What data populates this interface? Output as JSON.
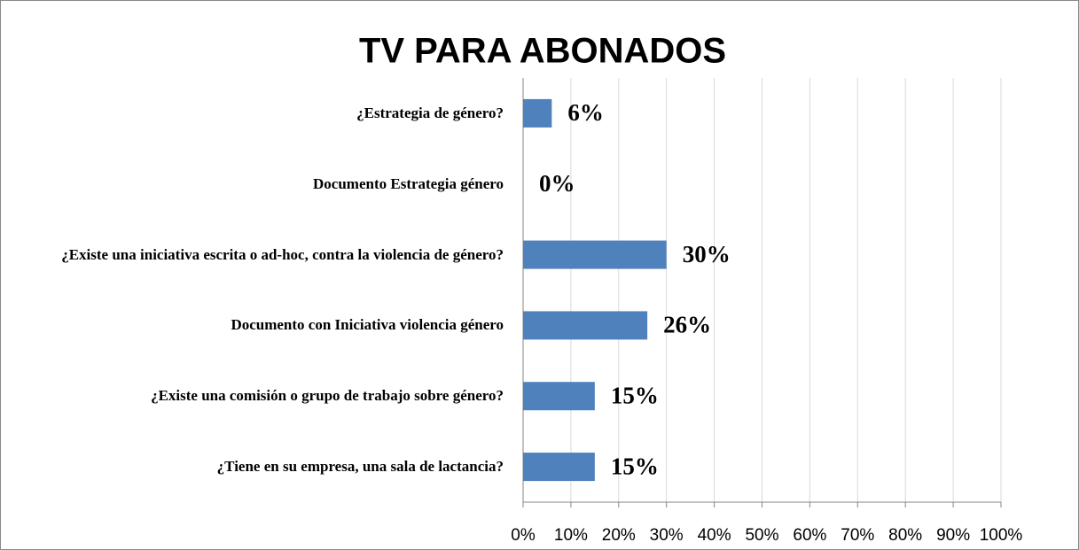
{
  "chart_data": {
    "type": "bar",
    "orientation": "horizontal",
    "title": "TV PARA ABONADOS",
    "categories": [
      "¿Estrategia de género?",
      "Documento Estrategia género",
      "¿Existe una iniciativa escrita o ad-hoc, contra la violencia de género?",
      "Documento con Iniciativa violencia género",
      "¿Existe una comisión o grupo de trabajo sobre género?",
      "¿Tiene en su empresa, una sala de lactancia?"
    ],
    "values": [
      6,
      0,
      30,
      26,
      15,
      15
    ],
    "value_labels": [
      "6%",
      "0%",
      "30%",
      "26%",
      "15%",
      "15%"
    ],
    "color": "#4f81bd",
    "xlim": [
      0,
      100
    ],
    "xticks": [
      {
        "value": 0,
        "label": "0%"
      },
      {
        "value": 10,
        "label": "10%"
      },
      {
        "value": 20,
        "label": "20%"
      },
      {
        "value": 30,
        "label": "30%"
      },
      {
        "value": 40,
        "label": "40%"
      },
      {
        "value": 50,
        "label": "50%"
      },
      {
        "value": 60,
        "label": "60%"
      },
      {
        "value": 70,
        "label": "70%"
      },
      {
        "value": 80,
        "label": "80%"
      },
      {
        "value": 90,
        "label": "90%"
      },
      {
        "value": 100,
        "label": "100%"
      }
    ],
    "grid": true
  }
}
